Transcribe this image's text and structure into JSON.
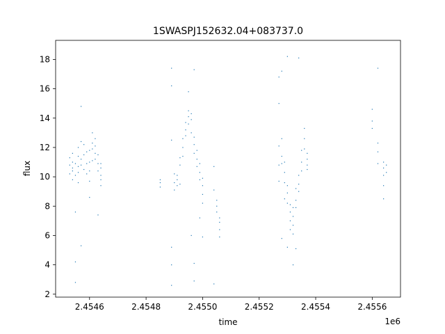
{
  "chart_data": {
    "type": "scatter",
    "title": "1SWASPJ152632.04+083737.0",
    "xlabel": "time",
    "ylabel": "flux",
    "x_offset_label": "1e6",
    "xlim": [
      2.45448,
      2.4557
    ],
    "ylim": [
      1.8,
      19.3
    ],
    "x_ticks": [
      2.4546,
      2.4548,
      2.455,
      2.4552,
      2.4554,
      2.4556
    ],
    "x_tick_labels": [
      "2.4546",
      "2.4548",
      "2.4550",
      "2.4552",
      "2.4554",
      "2.4556"
    ],
    "y_ticks": [
      2,
      4,
      6,
      8,
      10,
      12,
      14,
      16,
      18
    ],
    "y_tick_labels": [
      "2",
      "4",
      "6",
      "8",
      "10",
      "12",
      "14",
      "16",
      "18"
    ],
    "grid": false,
    "marker_color": "#1f77b4",
    "series": [
      {
        "points": [
          [
            2.45453,
            10.8
          ],
          [
            2.45453,
            10.2
          ],
          [
            2.45453,
            11.3
          ],
          [
            2.45454,
            10.6
          ],
          [
            2.45454,
            11.0
          ],
          [
            2.45454,
            9.8
          ],
          [
            2.45454,
            10.4
          ],
          [
            2.45454,
            11.6
          ],
          [
            2.45455,
            10.9
          ],
          [
            2.45455,
            10.1
          ],
          [
            2.45455,
            7.6
          ],
          [
            2.45455,
            4.2
          ],
          [
            2.45455,
            2.8
          ],
          [
            2.45456,
            10.7
          ],
          [
            2.45456,
            11.4
          ],
          [
            2.45456,
            12.0
          ],
          [
            2.45456,
            10.3
          ],
          [
            2.45456,
            9.6
          ],
          [
            2.45457,
            11.2
          ],
          [
            2.45457,
            12.4
          ],
          [
            2.45457,
            10.8
          ],
          [
            2.45457,
            5.3
          ],
          [
            2.45457,
            14.8
          ],
          [
            2.45458,
            11.5
          ],
          [
            2.45458,
            10.5
          ],
          [
            2.45458,
            12.2
          ],
          [
            2.45459,
            10.9
          ],
          [
            2.45459,
            11.7
          ],
          [
            2.45459,
            10.2
          ],
          [
            2.4546,
            11.0
          ],
          [
            2.4546,
            10.4
          ],
          [
            2.4546,
            11.8
          ],
          [
            2.4546,
            9.7
          ],
          [
            2.4546,
            8.6
          ],
          [
            2.45461,
            11.9
          ],
          [
            2.45461,
            12.3
          ],
          [
            2.45461,
            11.1
          ],
          [
            2.45461,
            13.0
          ],
          [
            2.45462,
            12.1
          ],
          [
            2.45462,
            11.6
          ],
          [
            2.45462,
            12.6
          ],
          [
            2.45462,
            11.2
          ],
          [
            2.45463,
            10.9
          ],
          [
            2.45463,
            11.5
          ],
          [
            2.45463,
            10.4
          ],
          [
            2.45463,
            7.4
          ],
          [
            2.45464,
            10.6
          ],
          [
            2.45464,
            10.1
          ],
          [
            2.45464,
            9.8
          ],
          [
            2.45464,
            10.9
          ],
          [
            2.45464,
            9.4
          ],
          [
            2.45485,
            9.8
          ],
          [
            2.45485,
            9.3
          ],
          [
            2.45485,
            9.6
          ],
          [
            2.45489,
            17.4
          ],
          [
            2.45489,
            16.2
          ],
          [
            2.45489,
            12.5
          ],
          [
            2.45489,
            4.0
          ],
          [
            2.45489,
            2.6
          ],
          [
            2.45489,
            5.2
          ],
          [
            2.4549,
            9.6
          ],
          [
            2.4549,
            9.1
          ],
          [
            2.4549,
            10.2
          ],
          [
            2.45491,
            9.4
          ],
          [
            2.45491,
            10.1
          ],
          [
            2.45491,
            9.8
          ],
          [
            2.45492,
            10.8
          ],
          [
            2.45492,
            11.3
          ],
          [
            2.45492,
            9.5
          ],
          [
            2.45493,
            12.0
          ],
          [
            2.45493,
            11.4
          ],
          [
            2.45493,
            12.6
          ],
          [
            2.45494,
            13.2
          ],
          [
            2.45494,
            12.8
          ],
          [
            2.45494,
            13.7
          ],
          [
            2.45495,
            14.1
          ],
          [
            2.45495,
            13.6
          ],
          [
            2.45495,
            14.5
          ],
          [
            2.45495,
            15.8
          ],
          [
            2.45496,
            13.9
          ],
          [
            2.45496,
            14.3
          ],
          [
            2.45496,
            13.0
          ],
          [
            2.45496,
            6.0
          ],
          [
            2.45497,
            12.2
          ],
          [
            2.45497,
            12.7
          ],
          [
            2.45497,
            11.6
          ],
          [
            2.45497,
            17.3
          ],
          [
            2.45497,
            2.9
          ],
          [
            2.45497,
            4.1
          ],
          [
            2.45498,
            11.2
          ],
          [
            2.45498,
            10.7
          ],
          [
            2.45498,
            11.8
          ],
          [
            2.45499,
            10.3
          ],
          [
            2.45499,
            10.9
          ],
          [
            2.45499,
            9.8
          ],
          [
            2.45499,
            7.2
          ],
          [
            2.455,
            9.4
          ],
          [
            2.455,
            9.9
          ],
          [
            2.455,
            8.8
          ],
          [
            2.455,
            8.2
          ],
          [
            2.455,
            5.9
          ],
          [
            2.45504,
            10.7
          ],
          [
            2.45504,
            9.1
          ],
          [
            2.45505,
            8.4
          ],
          [
            2.45505,
            7.6
          ],
          [
            2.45505,
            8.0
          ],
          [
            2.45506,
            7.2
          ],
          [
            2.45506,
            6.4
          ],
          [
            2.45506,
            6.9
          ],
          [
            2.45506,
            5.9
          ],
          [
            2.45504,
            2.7
          ],
          [
            2.45527,
            16.8
          ],
          [
            2.45527,
            15.0
          ],
          [
            2.45527,
            12.1
          ],
          [
            2.45527,
            10.8
          ],
          [
            2.45527,
            9.7
          ],
          [
            2.45528,
            11.4
          ],
          [
            2.45528,
            10.9
          ],
          [
            2.45528,
            12.6
          ],
          [
            2.45528,
            17.2
          ],
          [
            2.45528,
            5.8
          ],
          [
            2.45529,
            10.3
          ],
          [
            2.45529,
            9.6
          ],
          [
            2.45529,
            11.0
          ],
          [
            2.45529,
            8.5
          ],
          [
            2.4553,
            8.9
          ],
          [
            2.4553,
            8.2
          ],
          [
            2.4553,
            9.4
          ],
          [
            2.4553,
            18.2
          ],
          [
            2.4553,
            5.2
          ],
          [
            2.45531,
            7.6
          ],
          [
            2.45531,
            7.0
          ],
          [
            2.45531,
            8.1
          ],
          [
            2.45531,
            6.4
          ],
          [
            2.45532,
            7.3
          ],
          [
            2.45532,
            6.7
          ],
          [
            2.45532,
            7.9
          ],
          [
            2.45532,
            6.1
          ],
          [
            2.45532,
            4.0
          ],
          [
            2.45533,
            8.4
          ],
          [
            2.45533,
            9.2
          ],
          [
            2.45533,
            7.9
          ],
          [
            2.45533,
            5.1
          ],
          [
            2.45534,
            9.5
          ],
          [
            2.45534,
            10.1
          ],
          [
            2.45534,
            9.0
          ],
          [
            2.45534,
            18.1
          ],
          [
            2.45535,
            11.0
          ],
          [
            2.45535,
            11.8
          ],
          [
            2.45535,
            10.4
          ],
          [
            2.45536,
            12.6
          ],
          [
            2.45536,
            13.3
          ],
          [
            2.45536,
            11.9
          ],
          [
            2.45537,
            11.2
          ],
          [
            2.45537,
            10.8
          ],
          [
            2.45537,
            11.6
          ],
          [
            2.45537,
            10.5
          ],
          [
            2.4556,
            13.8
          ],
          [
            2.4556,
            13.3
          ],
          [
            2.4556,
            14.6
          ],
          [
            2.45562,
            11.7
          ],
          [
            2.45562,
            10.9
          ],
          [
            2.45562,
            12.3
          ],
          [
            2.45562,
            17.4
          ],
          [
            2.45564,
            10.6
          ],
          [
            2.45564,
            10.1
          ],
          [
            2.45564,
            11.0
          ],
          [
            2.45564,
            9.4
          ],
          [
            2.45564,
            8.5
          ],
          [
            2.45565,
            10.8
          ],
          [
            2.45565,
            10.3
          ]
        ]
      }
    ]
  }
}
